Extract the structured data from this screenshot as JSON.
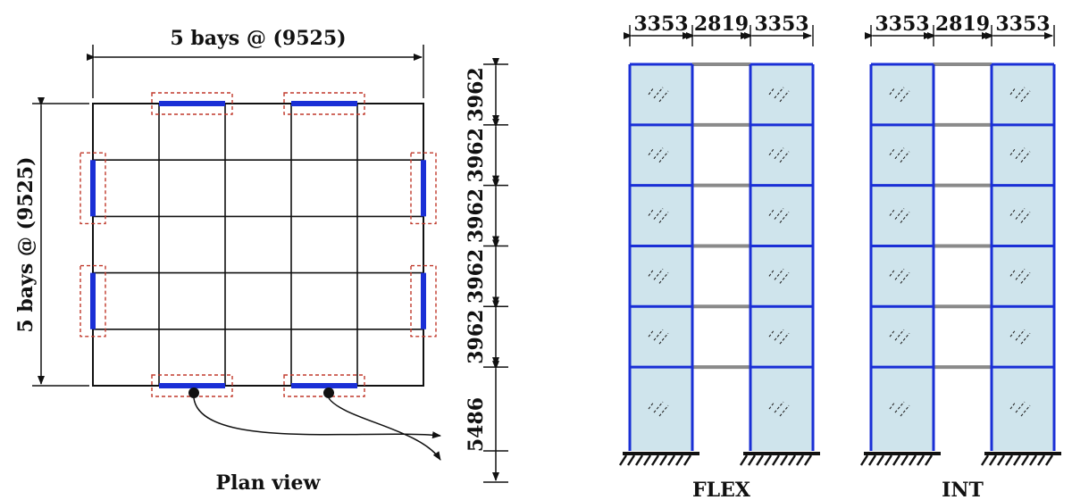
{
  "plan": {
    "top_dimension_label": "5 bays @ (9525)",
    "left_dimension_label": "5 bays @ (9525)",
    "caption": "Plan view",
    "bays": 5
  },
  "story_heights": [
    "3962",
    "3962",
    "3962",
    "3962",
    "3962",
    "5486"
  ],
  "stories": 6,
  "elevations": [
    {
      "id": "flex",
      "caption": "FLEX",
      "bay_widths": [
        "3353",
        "2819",
        "3353"
      ]
    },
    {
      "id": "int",
      "caption": "INT",
      "bay_widths": [
        "3353",
        "2819",
        "3353"
      ]
    }
  ],
  "colors": {
    "line": "#111111",
    "wall": "#1a2fd6",
    "highlight_box": "#c0392b",
    "panel_fill": "#cfe4ec",
    "beam_grey": "#8a8a8a",
    "frame_blue": "#1a2fd6"
  }
}
